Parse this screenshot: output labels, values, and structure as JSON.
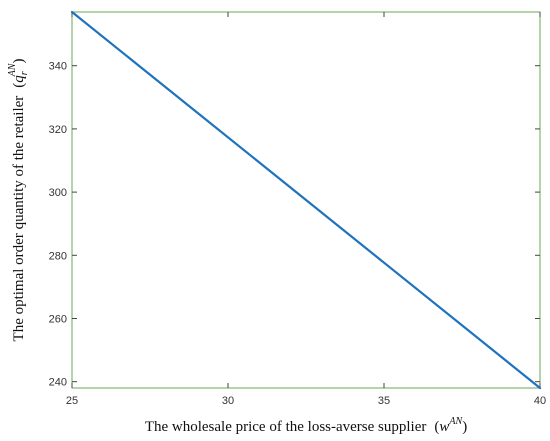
{
  "chart_data": {
    "type": "line",
    "title": "",
    "xlabel": {
      "text": "The wholesale price of the loss-averse supplier",
      "symbol": "w",
      "superscript": "AN"
    },
    "ylabel": {
      "text": "The optimal order quantity of the retailer",
      "symbol": "q",
      "subscript": "r",
      "superscript": "AN"
    },
    "xlim": [
      25,
      40
    ],
    "ylim": [
      238,
      357
    ],
    "x_ticks": [
      25,
      30,
      35,
      40
    ],
    "y_ticks": [
      240,
      260,
      280,
      300,
      320,
      340
    ],
    "grid": false,
    "series": [
      {
        "color": "#1f72bd",
        "x": [
          25,
          40
        ],
        "y": [
          357,
          238
        ]
      }
    ],
    "colors": {
      "axes_box": "#6aa84f",
      "line": "#1f72bd"
    }
  }
}
